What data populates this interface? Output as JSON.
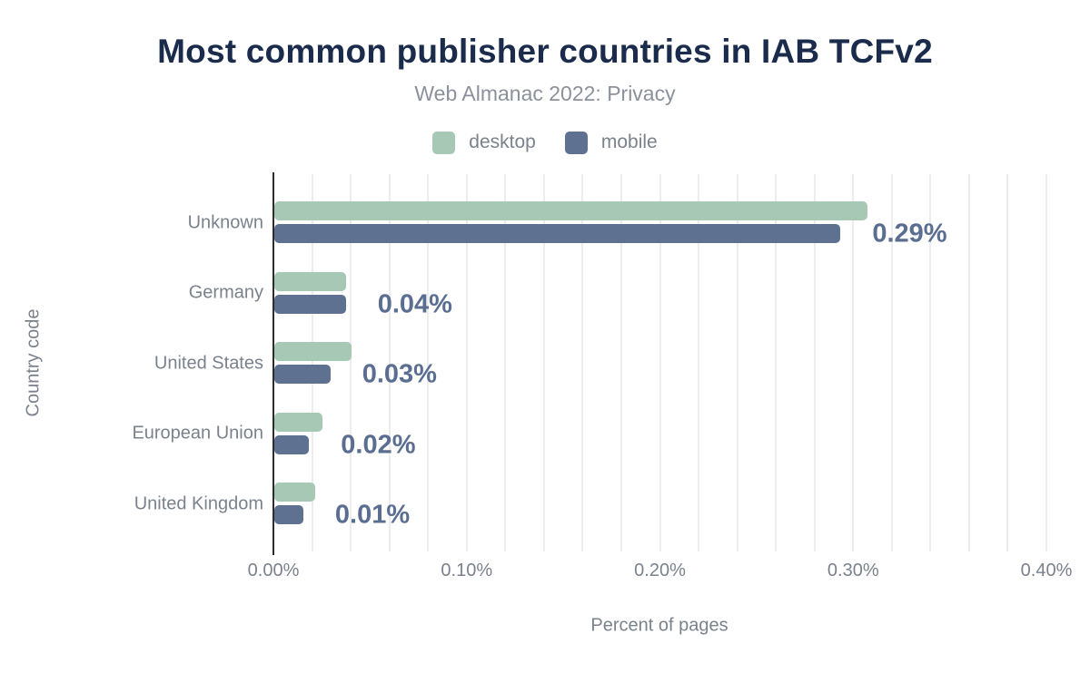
{
  "chart_data": {
    "type": "bar",
    "orientation": "horizontal",
    "title": "Most common publisher countries in IAB TCFv2",
    "subtitle": "Web Almanac 2022: Privacy",
    "xlabel": "Percent of pages",
    "ylabel": "Country code",
    "xlim": [
      0,
      0.4
    ],
    "x_tick_labels": [
      "0.00%",
      "0.10%",
      "0.20%",
      "0.30%",
      "0.40%"
    ],
    "grid": true,
    "grid_interval": 0.02,
    "legend_position": "top",
    "categories": [
      "Unknown",
      "Germany",
      "United States",
      "European Union",
      "United Kingdom"
    ],
    "series": [
      {
        "name": "desktop",
        "color": "#a7c8b5",
        "values": [
          0.307,
          0.037,
          0.04,
          0.025,
          0.021
        ]
      },
      {
        "name": "mobile",
        "color": "#5e7190",
        "values": [
          0.293,
          0.037,
          0.029,
          0.018,
          0.015
        ]
      }
    ],
    "data_labels": {
      "labelled_series": "mobile",
      "values": [
        "0.29%",
        "0.04%",
        "0.03%",
        "0.02%",
        "0.01%"
      ]
    }
  },
  "colors": {
    "title": "#1a2b4c",
    "subtitle_text": "#8b919b",
    "axis_text": "#7a828c",
    "value_label": "#5a6e91",
    "gridline": "#ededed",
    "axis_line": "#2d2d2d",
    "background": "#ffffff"
  }
}
